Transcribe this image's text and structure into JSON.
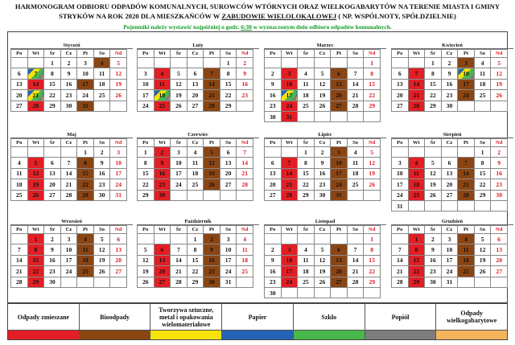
{
  "header": {
    "line1": "HARMONOGRAM ODBIORU ODPADÓW KOMUNALNYCH, SUROWCÓW WTÓRNYCH ORAZ WIELKOGABARYTÓW NA TERENIE MIASTA I GMINY",
    "line2a": "STRYKÓW NA ROK 2020 DLA MIESZKAŃCÓW W ",
    "line2b": "ZABUDOWIE WIELOLOKALOWEJ",
    "line2c": " ( NP. WSPÓLNOTY, SPÓŁDZIELNIE)",
    "note_a": "Pojemniki należy wystawić najpóźniej o godz. ",
    "note_b": "6:30",
    "note_c": " w wyznaczonym dniu odbioru odpadów komunalnych."
  },
  "weekdays": [
    "Po",
    "Wt",
    "Śr",
    "Cz",
    "Pt",
    "So",
    "Nd"
  ],
  "colors": {
    "red": "#e31e24",
    "brown": "#8b4513",
    "yellow": "#f7e20a",
    "blue": "#2662b8",
    "green": "#49b84a",
    "gray": "#7d7d7d",
    "orange": "#f5b35b",
    "combo": "linear-gradient(135deg, #2662b8 0%, #2662b8 25%, #f7e20a 25%, #f7e20a 50%, #49b84a 50%, #49b84a 75%, #7d7d7d 75%)"
  },
  "months": [
    {
      "name": "Styczeń",
      "start": 2,
      "days": 31,
      "marks": {
        "4": "brown",
        "6": "sun",
        "7": "combo",
        "14": "red",
        "17": "brown",
        "21": "combo",
        "28": "red",
        "31": "brown"
      }
    },
    {
      "name": "Luty",
      "start": 5,
      "days": 29,
      "marks": {
        "4": "red",
        "7": "brown",
        "11": "red",
        "14": "brown",
        "18": "combo",
        "21": "brown",
        "25": "red",
        "28": "brown"
      }
    },
    {
      "name": "Marzec",
      "start": 6,
      "days": 31,
      "marks": {
        "3": "red",
        "6": "brown",
        "10": "red",
        "13": "brown",
        "17": "combo",
        "20": "brown",
        "24": "red",
        "27": "brown",
        "31": "red"
      }
    },
    {
      "name": "Kwiecień",
      "start": 2,
      "days": 30,
      "marks": {
        "3": "brown",
        "7": "red",
        "10": "combo",
        "14": "red",
        "17": "brown",
        "21": "red",
        "24": "brown",
        "28": "red"
      }
    },
    {
      "name": "Maj",
      "start": 4,
      "days": 31,
      "marks": {
        "5": "red",
        "8": "brown",
        "12": "red",
        "15": "brown",
        "19": "red",
        "22": "brown",
        "26": "red",
        "29": "brown"
      }
    },
    {
      "name": "Czerwiec",
      "start": 0,
      "days": 30,
      "marks": {
        "2": "red",
        "5": "brown",
        "9": "red",
        "12": "brown",
        "16": "red",
        "19": "brown",
        "23": "red",
        "26": "brown",
        "30": "red"
      }
    },
    {
      "name": "Lipiec",
      "start": 2,
      "days": 31,
      "marks": {
        "3": "brown",
        "7": "red",
        "10": "brown",
        "14": "red",
        "17": "brown",
        "21": "red",
        "24": "brown",
        "28": "red",
        "31": "brown"
      }
    },
    {
      "name": "Sierpień",
      "start": 5,
      "days": 31,
      "marks": {
        "4": "red",
        "7": "brown",
        "11": "red",
        "14": "brown",
        "18": "red",
        "21": "brown",
        "25": "red",
        "28": "brown"
      }
    },
    {
      "name": "Wrzesień",
      "start": 1,
      "days": 30,
      "marks": {
        "1": "red",
        "4": "brown",
        "8": "red",
        "11": "brown",
        "15": "red",
        "18": "brown",
        "22": "red",
        "25": "brown",
        "29": "red"
      }
    },
    {
      "name": "Październik",
      "start": 3,
      "days": 31,
      "marks": {
        "2": "brown",
        "6": "red",
        "9": "brown",
        "13": "red",
        "16": "brown",
        "20": "red",
        "23": "brown",
        "27": "red",
        "30": "brown"
      }
    },
    {
      "name": "Listopad",
      "start": 6,
      "days": 30,
      "marks": {
        "3": "red",
        "6": "brown",
        "10": "red",
        "13": "brown",
        "17": "red",
        "20": "brown",
        "24": "red",
        "27": "brown"
      }
    },
    {
      "name": "Grudzień",
      "start": 1,
      "days": 31,
      "marks": {
        "1": "red",
        "4": "brown",
        "8": "red",
        "11": "brown",
        "15": "red",
        "18": "brown",
        "22": "red",
        "25": "brown",
        "29": "red"
      }
    }
  ],
  "legend": [
    {
      "label": "Odpady zmieszane",
      "color": "#e31e24"
    },
    {
      "label": "Bioodpady",
      "color": "#8b4513"
    },
    {
      "label": "Tworzywa sztuczne, metal i opakowania wielomateriałowe",
      "color": "#f7e20a"
    },
    {
      "label": "Papier",
      "color": "#2662b8"
    },
    {
      "label": "Szkło",
      "color": "#49b84a"
    },
    {
      "label": "Popiół",
      "color": "#7d7d7d"
    },
    {
      "label": "Odpady wielkogabarytowe",
      "color": "#f5b35b"
    }
  ]
}
